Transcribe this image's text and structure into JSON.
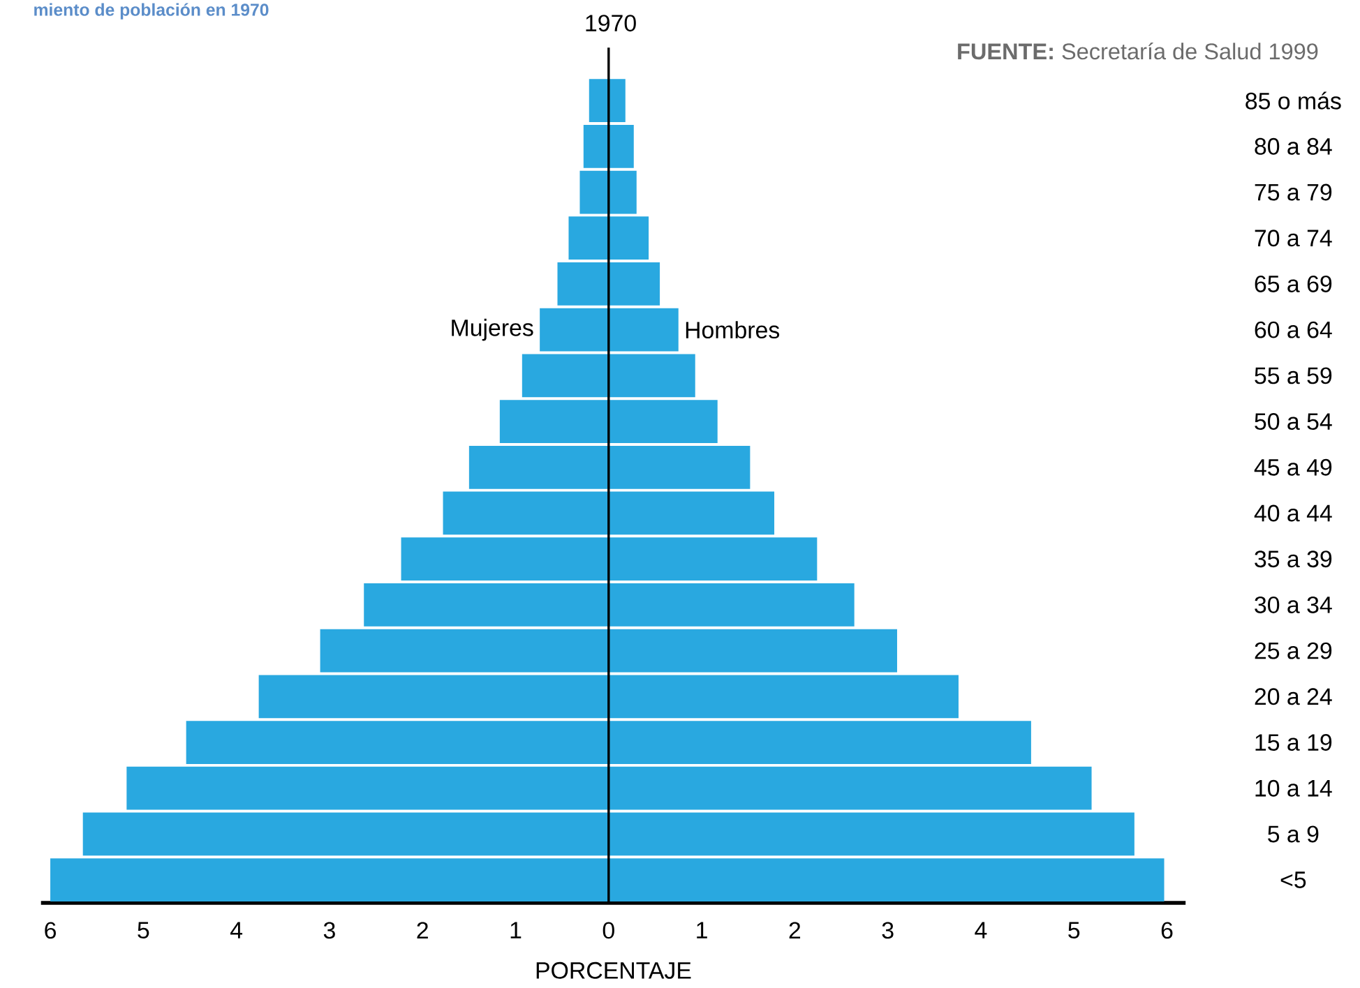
{
  "chart_data": {
    "type": "bar",
    "orientation": "horizontal",
    "title": "1970",
    "xlabel": "PORCENTAJE",
    "annotations": [
      "**FUENTE:** Secretaría de Salud 1999",
      "miento de población en 1970"
    ],
    "categories": [
      "85 o más",
      "80 a 84",
      "75 a 79",
      "70 a 74",
      "65 a 69",
      "60 a 64",
      "55 a 59",
      "50 a 54",
      "45 a 49",
      "40 a 44",
      "35 a 39",
      "30 a 34",
      "25 a 29",
      "20 a 24",
      "15 a 19",
      "10 a 14",
      "5 a 9",
      "<5"
    ],
    "series": [
      {
        "name": "Mujeres",
        "color": "#29a8e0",
        "values": [
          -0.21,
          -0.27,
          -0.31,
          -0.43,
          -0.55,
          -0.74,
          -0.93,
          -1.17,
          -1.5,
          -1.78,
          -2.23,
          -2.63,
          -3.1,
          -3.76,
          -4.54,
          -5.18,
          -5.65,
          -6.0
        ]
      },
      {
        "name": "Hombres",
        "color": "#29a8e0",
        "values": [
          0.18,
          0.27,
          0.3,
          0.43,
          0.55,
          0.75,
          0.93,
          1.17,
          1.52,
          1.78,
          2.24,
          2.64,
          3.1,
          3.76,
          4.54,
          5.19,
          5.65,
          5.97
        ]
      }
    ],
    "xlim": [
      -6.1,
      6.2
    ],
    "xticks": [
      {
        "value": -6,
        "label": "6"
      },
      {
        "value": -5,
        "label": "5"
      },
      {
        "value": -4,
        "label": "4"
      },
      {
        "value": -3,
        "label": "3"
      },
      {
        "value": -2,
        "label": "2"
      },
      {
        "value": -1,
        "label": "1"
      },
      0,
      1,
      2,
      3,
      4,
      5,
      6
    ],
    "ref_lines": [
      {
        "axis": "x",
        "value": 0,
        "color": "#000000"
      }
    ],
    "stacked": true
  }
}
